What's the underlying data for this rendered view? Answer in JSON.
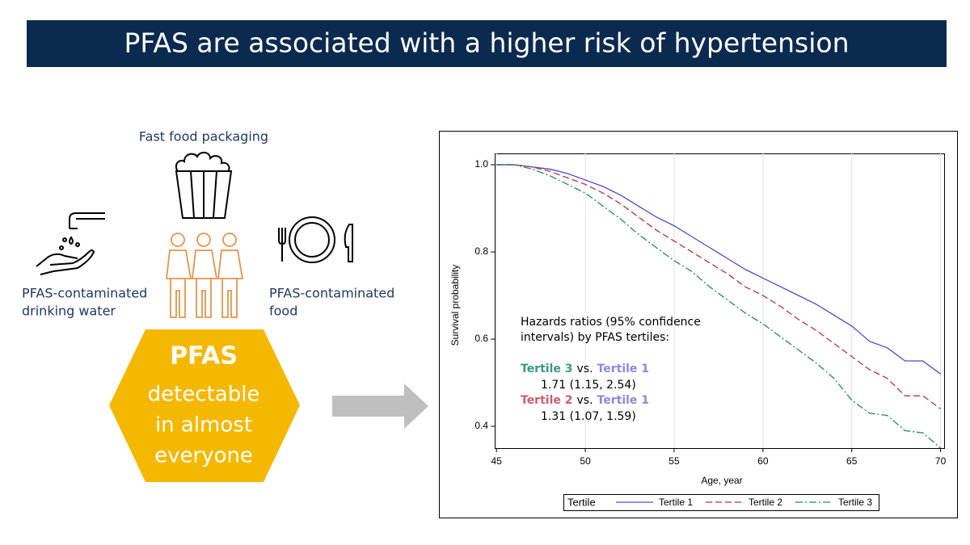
{
  "header": {
    "title": "PFAS are associated with a higher risk of hypertension"
  },
  "sources": {
    "packaging": "Fast food packaging",
    "water": [
      "PFAS-contaminated",
      "drinking water"
    ],
    "food": [
      "PFAS-contaminated",
      "food"
    ]
  },
  "hexagon": {
    "title": "PFAS",
    "lines": [
      "detectable",
      "in almost",
      "everyone"
    ]
  },
  "chart_data": {
    "type": "line",
    "x_label": "Age, year",
    "y_label": "Survival probability",
    "x": [
      45,
      46,
      47,
      48,
      49,
      50,
      51,
      52,
      53,
      54,
      55,
      56,
      57,
      58,
      59,
      60,
      61,
      62,
      63,
      64,
      65,
      66,
      67,
      68,
      69,
      70
    ],
    "series": [
      {
        "name": "Tertile 1",
        "color": "#4a4ad0",
        "linestyle": "solid",
        "values": [
          1.0,
          1.0,
          0.995,
          0.99,
          0.98,
          0.965,
          0.95,
          0.93,
          0.905,
          0.88,
          0.86,
          0.835,
          0.81,
          0.785,
          0.76,
          0.74,
          0.72,
          0.7,
          0.68,
          0.655,
          0.63,
          0.595,
          0.58,
          0.55,
          0.55,
          0.52
        ]
      },
      {
        "name": "Tertile 2",
        "color": "#b8323f",
        "linestyle": "dashed",
        "values": [
          1.0,
          1.0,
          0.995,
          0.985,
          0.97,
          0.955,
          0.935,
          0.91,
          0.88,
          0.85,
          0.825,
          0.8,
          0.775,
          0.75,
          0.72,
          0.7,
          0.675,
          0.645,
          0.62,
          0.59,
          0.56,
          0.53,
          0.51,
          0.47,
          0.47,
          0.44
        ]
      },
      {
        "name": "Tertile 3",
        "color": "#1e8a6c",
        "linestyle": "dashdot",
        "values": [
          1.0,
          1.0,
          0.99,
          0.975,
          0.955,
          0.935,
          0.905,
          0.875,
          0.84,
          0.81,
          0.78,
          0.755,
          0.72,
          0.69,
          0.66,
          0.635,
          0.605,
          0.575,
          0.545,
          0.51,
          0.46,
          0.43,
          0.425,
          0.39,
          0.385,
          0.35
        ]
      }
    ],
    "xlim": [
      44.9,
      70.2
    ],
    "ylim": [
      0.35,
      1.026
    ],
    "xticks": [
      45,
      50,
      55,
      60,
      65,
      70
    ],
    "yticks": [
      0.4,
      0.6,
      0.8,
      {
        "value": 1,
        "label": "1.0"
      }
    ],
    "grid": "x",
    "legend_title": "Tertile",
    "legend": "bottom",
    "annotation": {
      "text": [
        "Hazards ratios (95% confidence",
        "intervals) by PFAS tertiles:"
      ],
      "comparisons": [
        {
          "a": "Tertile 3",
          "a_color": "#3a9a7e",
          "vs": "vs.",
          "b": "Tertile 1",
          "b_color": "#8a8ae0",
          "hr": "1.71 (1.15, 2.54)"
        },
        {
          "a": "Tertile 2",
          "a_color": "#c9606c",
          "vs": "vs.",
          "b": "Tertile 1",
          "b_color": "#8a8ae0",
          "hr": "1.31 (1.07, 1.59)"
        }
      ]
    }
  }
}
